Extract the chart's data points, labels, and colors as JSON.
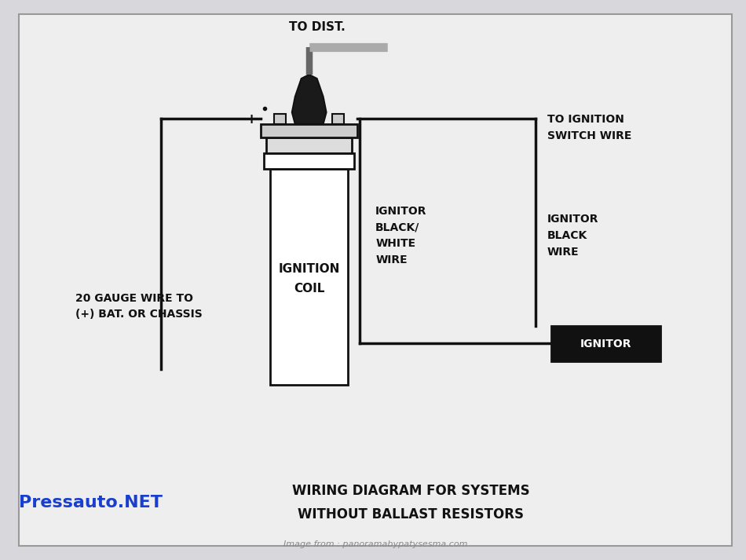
{
  "bg_color": "#d8d8dc",
  "inner_bg": "#e8e8ec",
  "title_line1": "WIRING DIAGRAM FOR SYSTEMS",
  "title_line2": "WITHOUT BALLAST RESISTORS",
  "watermark": "Image from : panoramabypatysesma.com",
  "brand": "Pressauto.NET",
  "brand_color": "#1a3fcc",
  "label_to_dist": "TO DIST.",
  "label_ign_switch": "TO IGNITION\nSWITCH WIRE",
  "label_coil": "IGNITION\nCOIL",
  "label_black_white": "IGNITOR\nBLACK/\nWHITE\nWIRE",
  "label_black": "IGNITOR\nBLACK\nWIRE",
  "label_gauge": "20 GAUGE WIRE TO\n(+) BAT. OR CHASSIS",
  "label_plus": "+",
  "label_minus": "–",
  "label_ignitor": "IGNITOR",
  "line_color": "#111111",
  "coil_body_fill": "#ffffff",
  "coil_cap_fill": "#ffffff",
  "coil_top_fill": "#cccccc",
  "tower_fill": "#1a1a1a",
  "ignitor_fill": "#111111",
  "ignitor_text": "#ffffff",
  "wire_gray": "#888888",
  "wire_dark": "#333333"
}
